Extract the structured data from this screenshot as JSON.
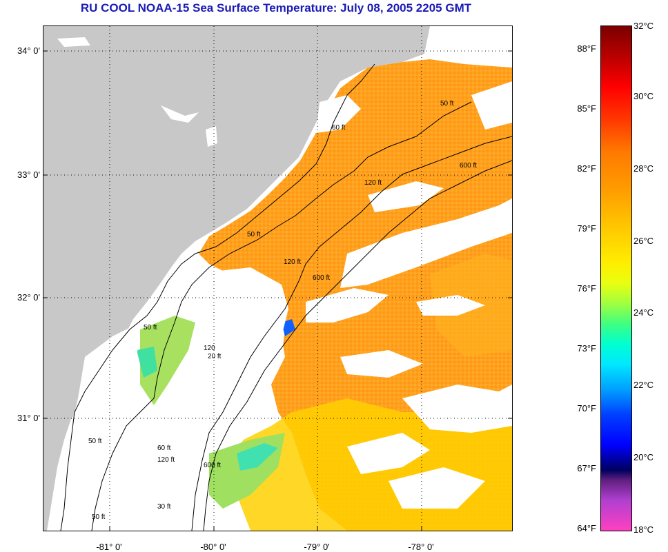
{
  "title": "RU COOL  NOAA-15  Sea Surface Temperature:  July 08, 2005 2205 GMT",
  "lat_labels": [
    "34° 0'",
    "33° 0'",
    "32° 0'",
    "31° 0'"
  ],
  "lon_labels": [
    "-81° 0'",
    "-80° 0'",
    "-79° 0'",
    "-78° 0'"
  ],
  "contour_labels": [
    "50 ft",
    "60 ft",
    "120 ft",
    "600 ft",
    "50 ft",
    "120 ft",
    "600 ft",
    "50 ft",
    "120",
    "20 ft",
    "50 ft",
    "60 ft",
    "120 ft",
    "600 ft",
    "50 ft",
    "30 ft"
  ],
  "colorbar": {
    "fahrenheit": [
      "88°F",
      "85°F",
      "82°F",
      "79°F",
      "76°F",
      "73°F",
      "70°F",
      "67°F",
      "64°F"
    ],
    "celsius": [
      "32°C",
      "30°C",
      "28°C",
      "26°C",
      "24°C",
      "22°C",
      "20°C",
      "18°C"
    ]
  },
  "colors": {
    "land": "#c8c8c8",
    "cloud": "#ffffff",
    "sst_warm": "#ff9a10",
    "sst_mid": "#ffd000",
    "sst_cool": "#40e0a0",
    "title": "#1a1ab8"
  }
}
